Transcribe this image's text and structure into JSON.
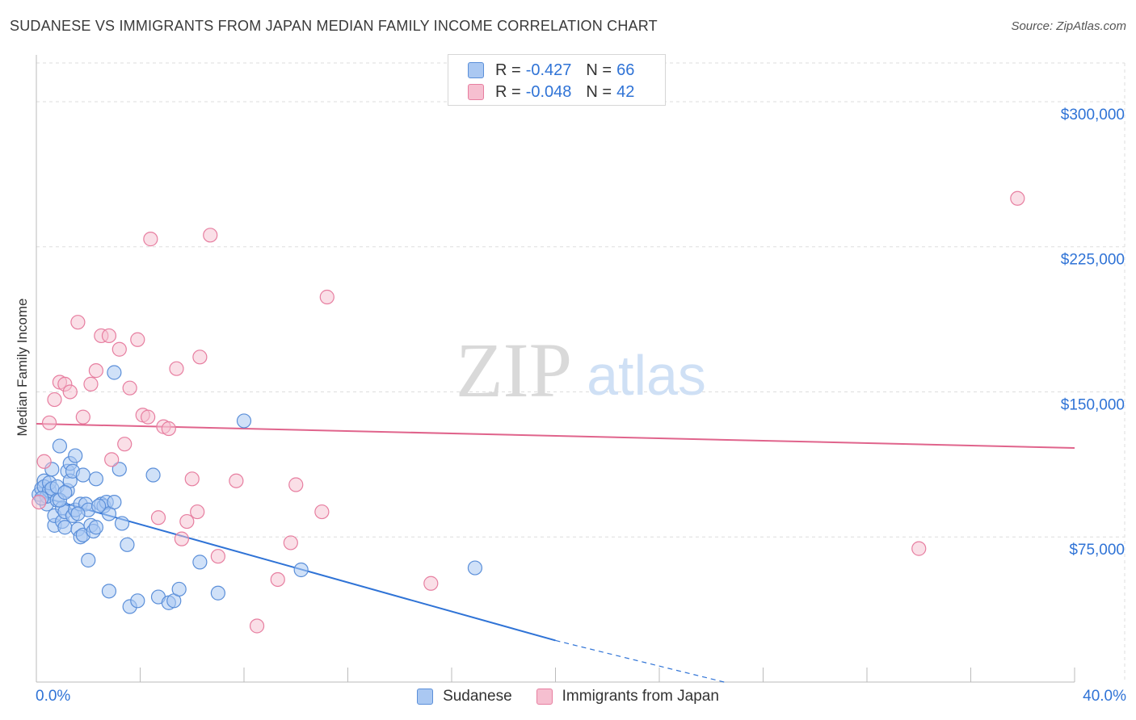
{
  "header": {
    "title": "SUDANESE VS IMMIGRANTS FROM JAPAN MEDIAN FAMILY INCOME CORRELATION CHART",
    "source": "Source: ZipAtlas.com"
  },
  "watermark": {
    "zip": "ZIP",
    "atlas": "atlas"
  },
  "legend": {
    "r_label": "R =",
    "n_label": "N =",
    "series": [
      {
        "r": "-0.427",
        "n": "66"
      },
      {
        "r": "-0.048",
        "n": "42"
      }
    ]
  },
  "bottom_legend": [
    "Sudanese",
    "Immigrants from Japan"
  ],
  "x_axis_labels": {
    "min": "0.0%",
    "max": "40.0%"
  },
  "colors": {
    "blue_fill": "#aac8f2",
    "blue_stroke": "#5b8fd9",
    "blue_line": "#2f73d6",
    "pink_fill": "#f6bfd0",
    "pink_stroke": "#e77ea0",
    "pink_line": "#e0648c",
    "axis_text": "#2f73d6",
    "grid": "#dddddd"
  },
  "chart_data": {
    "type": "scatter",
    "title": "SUDANESE VS IMMIGRANTS FROM JAPAN MEDIAN FAMILY INCOME CORRELATION CHART",
    "xlabel": "",
    "ylabel": "Median Family Income",
    "xlim": [
      0,
      40
    ],
    "ylim": [
      0,
      320000
    ],
    "y_ticks": [
      75000,
      150000,
      225000,
      300000
    ],
    "y_tick_labels": [
      "$75,000",
      "$150,000",
      "$225,000",
      "$300,000"
    ],
    "grid": true,
    "series": [
      {
        "name": "Sudanese",
        "r": -0.427,
        "n": 66,
        "trend": {
          "x0": 0,
          "y0": 96500,
          "x1": 20,
          "y1": 21500,
          "dashed_to_x": 26.5,
          "dashed_to_y": 0
        },
        "points": [
          [
            0.1,
            97000
          ],
          [
            0.2,
            100000
          ],
          [
            0.3,
            104000
          ],
          [
            0.3,
            101000
          ],
          [
            0.4,
            92000
          ],
          [
            0.4,
            96000
          ],
          [
            0.5,
            99000
          ],
          [
            0.5,
            103000
          ],
          [
            0.6,
            110000
          ],
          [
            0.6,
            100000
          ],
          [
            0.7,
            81000
          ],
          [
            0.7,
            86000
          ],
          [
            0.8,
            101000
          ],
          [
            0.8,
            94000
          ],
          [
            0.9,
            122000
          ],
          [
            1.0,
            90000
          ],
          [
            1.0,
            83000
          ],
          [
            1.1,
            88000
          ],
          [
            1.1,
            80000
          ],
          [
            1.2,
            99000
          ],
          [
            1.2,
            109000
          ],
          [
            1.3,
            113000
          ],
          [
            1.3,
            104000
          ],
          [
            1.4,
            109000
          ],
          [
            1.4,
            86000
          ],
          [
            1.5,
            89000
          ],
          [
            1.5,
            117000
          ],
          [
            1.6,
            79000
          ],
          [
            1.7,
            92000
          ],
          [
            1.7,
            75000
          ],
          [
            1.8,
            107000
          ],
          [
            1.8,
            76000
          ],
          [
            1.9,
            92000
          ],
          [
            2.0,
            89000
          ],
          [
            2.0,
            63000
          ],
          [
            2.1,
            81000
          ],
          [
            2.2,
            78000
          ],
          [
            2.3,
            80000
          ],
          [
            2.3,
            105000
          ],
          [
            2.5,
            92000
          ],
          [
            2.6,
            91000
          ],
          [
            2.7,
            93000
          ],
          [
            2.8,
            87000
          ],
          [
            2.8,
            47000
          ],
          [
            3.0,
            93000
          ],
          [
            3.0,
            160000
          ],
          [
            3.2,
            110000
          ],
          [
            3.3,
            82000
          ],
          [
            3.5,
            71000
          ],
          [
            3.6,
            39000
          ],
          [
            3.9,
            42000
          ],
          [
            4.5,
            107000
          ],
          [
            4.7,
            44000
          ],
          [
            5.1,
            41000
          ],
          [
            5.3,
            42000
          ],
          [
            5.5,
            48000
          ],
          [
            6.3,
            62000
          ],
          [
            7.0,
            46000
          ],
          [
            8.0,
            135000
          ],
          [
            10.2,
            58000
          ],
          [
            16.9,
            59000
          ],
          [
            0.9,
            94000
          ],
          [
            1.6,
            87000
          ],
          [
            2.4,
            91000
          ],
          [
            0.2,
            95000
          ],
          [
            1.1,
            98000
          ]
        ]
      },
      {
        "name": "Immigrants from Japan",
        "r": -0.048,
        "n": 42,
        "trend": {
          "x0": 0,
          "y0": 133500,
          "x1": 40,
          "y1": 121000
        },
        "points": [
          [
            0.1,
            93000
          ],
          [
            0.3,
            114000
          ],
          [
            0.5,
            134000
          ],
          [
            0.7,
            146000
          ],
          [
            0.9,
            155000
          ],
          [
            1.1,
            154000
          ],
          [
            1.3,
            150000
          ],
          [
            1.6,
            186000
          ],
          [
            1.8,
            137000
          ],
          [
            2.1,
            154000
          ],
          [
            2.3,
            161000
          ],
          [
            2.5,
            179000
          ],
          [
            2.8,
            179000
          ],
          [
            2.9,
            115000
          ],
          [
            3.2,
            172000
          ],
          [
            3.4,
            123000
          ],
          [
            3.6,
            152000
          ],
          [
            3.9,
            177000
          ],
          [
            4.1,
            138000
          ],
          [
            4.3,
            137000
          ],
          [
            4.4,
            229000
          ],
          [
            4.7,
            85000
          ],
          [
            4.9,
            132000
          ],
          [
            5.1,
            131000
          ],
          [
            5.4,
            162000
          ],
          [
            5.6,
            74000
          ],
          [
            5.8,
            83000
          ],
          [
            6.0,
            105000
          ],
          [
            6.2,
            88000
          ],
          [
            6.3,
            168000
          ],
          [
            6.7,
            231000
          ],
          [
            7.0,
            65000
          ],
          [
            7.7,
            104000
          ],
          [
            8.5,
            29000
          ],
          [
            9.3,
            53000
          ],
          [
            9.8,
            72000
          ],
          [
            10.0,
            102000
          ],
          [
            11.0,
            88000
          ],
          [
            11.2,
            199000
          ],
          [
            15.2,
            51000
          ],
          [
            34.0,
            69000
          ],
          [
            37.8,
            250000
          ]
        ]
      }
    ]
  }
}
